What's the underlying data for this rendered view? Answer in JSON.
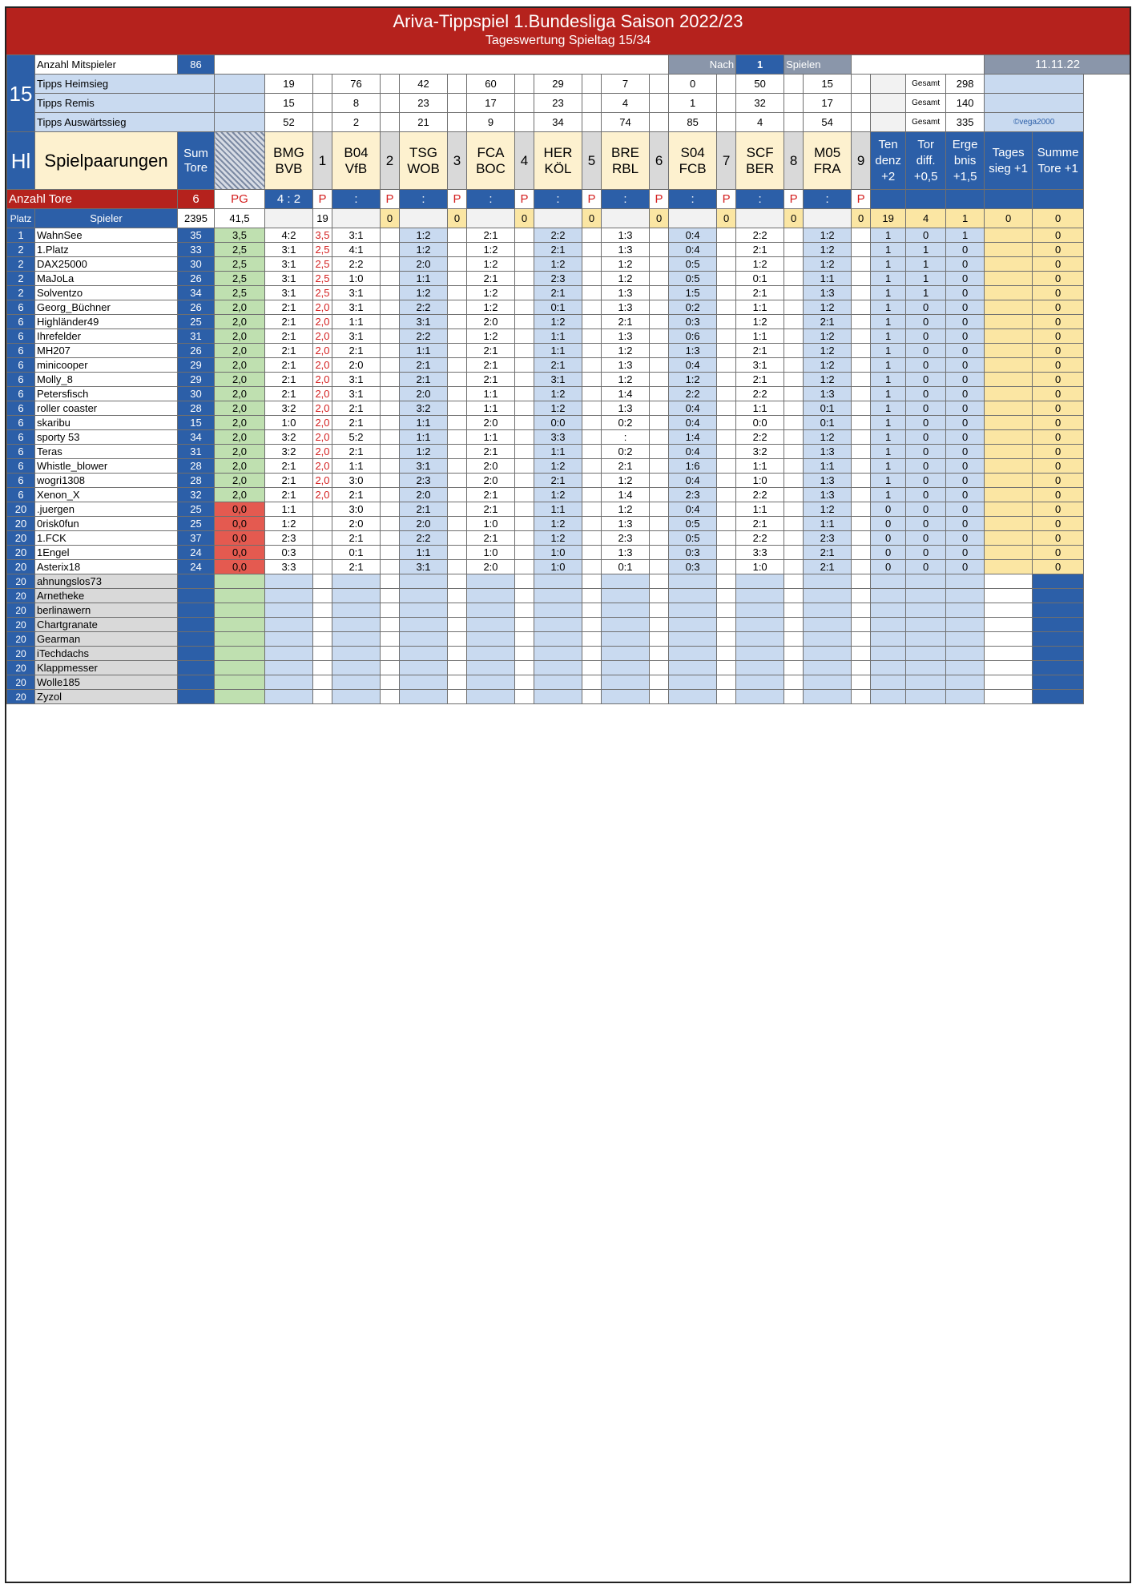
{
  "title": "Ariva-Tippspiel 1.Bundesliga Saison 2022/23",
  "subtitle": "Tageswertung Spieltag 15/34",
  "matchday": "15",
  "players_label": "Anzahl Mitspieler",
  "players_count": "86",
  "nach_label": "Nach",
  "nach_value": "1",
  "spielen_label": "Spielen",
  "date": "11.11.22",
  "copyright": "©vega2000",
  "gesamt_label": "Gesamt",
  "tipps": {
    "home_label": "Tipps Heimsieg",
    "home": [
      "19",
      "76",
      "42",
      "60",
      "29",
      "7",
      "0",
      "50",
      "15"
    ],
    "home_total": "298",
    "draw_label": "Tipps Remis",
    "draw": [
      "15",
      "8",
      "23",
      "17",
      "23",
      "4",
      "1",
      "32",
      "17"
    ],
    "draw_total": "140",
    "away_label": "Tipps Auswärtssieg",
    "away": [
      "52",
      "2",
      "21",
      "9",
      "34",
      "74",
      "85",
      "4",
      "54"
    ],
    "away_total": "335"
  },
  "header": {
    "hl": "Hl",
    "pairings": "Spielpaarungen",
    "sum_tore": "Sum Tore",
    "tendenz": "Ten denz +2",
    "tordiff": "Tor diff. +0,5",
    "ergebnis": "Erge bnis +1,5",
    "tagessieg": "Tages sieg +1",
    "summe_tore": "Summe Tore +1"
  },
  "matches": [
    {
      "home": "BMG",
      "away": "BVB",
      "n": "1",
      "result": "4 : 2"
    },
    {
      "home": "B04",
      "away": "VfB",
      "n": "2",
      "result": ":"
    },
    {
      "home": "TSG",
      "away": "WOB",
      "n": "3",
      "result": ":"
    },
    {
      "home": "FCA",
      "away": "BOC",
      "n": "4",
      "result": ":"
    },
    {
      "home": "HER",
      "away": "KÖL",
      "n": "5",
      "result": ":"
    },
    {
      "home": "BRE",
      "away": "RBL",
      "n": "6",
      "result": ":"
    },
    {
      "home": "S04",
      "away": "FCB",
      "n": "7",
      "result": ":"
    },
    {
      "home": "SCF",
      "away": "BER",
      "n": "8",
      "result": ":"
    },
    {
      "home": "M05",
      "away": "FRA",
      "n": "9",
      "result": ":"
    }
  ],
  "tore_label": "Anzahl Tore",
  "tore_value": "6",
  "pg_label": "PG",
  "p_label": "P",
  "col_platz": "Platz",
  "col_spieler": "Spieler",
  "sum_row": {
    "tore": "2395",
    "pg": "41,5",
    "p1": "19",
    "pts": [
      "0",
      "0",
      "0",
      "0",
      "0",
      "0",
      "0",
      "0"
    ],
    "tend": "19",
    "diff": "4",
    "erg": "1",
    "tag": "0",
    "sum": "0"
  },
  "players": [
    [
      "1",
      "WahnSee",
      "35",
      "3,5",
      "4:2",
      "3,5",
      "3:1",
      "1:2",
      "2:1",
      "2:2",
      "1:3",
      "0:4",
      "2:2",
      "1:2",
      "1",
      "0",
      "1",
      "",
      "0"
    ],
    [
      "2",
      "1.Platz",
      "33",
      "2,5",
      "3:1",
      "2,5",
      "4:1",
      "1:2",
      "1:2",
      "2:1",
      "1:3",
      "0:4",
      "2:1",
      "1:2",
      "1",
      "1",
      "0",
      "",
      "0"
    ],
    [
      "2",
      "DAX25000",
      "30",
      "2,5",
      "3:1",
      "2,5",
      "2:2",
      "2:0",
      "1:2",
      "1:2",
      "1:2",
      "0:5",
      "1:2",
      "1:2",
      "1",
      "1",
      "0",
      "",
      "0"
    ],
    [
      "2",
      "MaJoLa",
      "26",
      "2,5",
      "3:1",
      "2,5",
      "1:0",
      "1:1",
      "2:1",
      "2:3",
      "1:2",
      "0:5",
      "0:1",
      "1:1",
      "1",
      "1",
      "0",
      "",
      "0"
    ],
    [
      "2",
      "Solventzo",
      "34",
      "2,5",
      "3:1",
      "2,5",
      "3:1",
      "1:2",
      "1:2",
      "2:1",
      "1:3",
      "1:5",
      "2:1",
      "1:3",
      "1",
      "1",
      "0",
      "",
      "0"
    ],
    [
      "6",
      "Georg_Büchner",
      "26",
      "2,0",
      "2:1",
      "2,0",
      "3:1",
      "2:2",
      "1:2",
      "0:1",
      "1:3",
      "0:2",
      "1:1",
      "1:2",
      "1",
      "0",
      "0",
      "",
      "0"
    ],
    [
      "6",
      "Highländer49",
      "25",
      "2,0",
      "2:1",
      "2,0",
      "1:1",
      "3:1",
      "2:0",
      "1:2",
      "2:1",
      "0:3",
      "1:2",
      "2:1",
      "1",
      "0",
      "0",
      "",
      "0"
    ],
    [
      "6",
      "Ihrefelder",
      "31",
      "2,0",
      "2:1",
      "2,0",
      "3:1",
      "2:2",
      "1:2",
      "1:1",
      "1:3",
      "0:6",
      "1:1",
      "1:2",
      "1",
      "0",
      "0",
      "",
      "0"
    ],
    [
      "6",
      "MH207",
      "26",
      "2,0",
      "2:1",
      "2,0",
      "2:1",
      "1:1",
      "2:1",
      "1:1",
      "1:2",
      "1:3",
      "2:1",
      "1:2",
      "1",
      "0",
      "0",
      "",
      "0"
    ],
    [
      "6",
      "minicooper",
      "29",
      "2,0",
      "2:1",
      "2,0",
      "2:0",
      "2:1",
      "2:1",
      "2:1",
      "1:3",
      "0:4",
      "3:1",
      "1:2",
      "1",
      "0",
      "0",
      "",
      "0"
    ],
    [
      "6",
      "Molly_8",
      "29",
      "2,0",
      "2:1",
      "2,0",
      "3:1",
      "2:1",
      "2:1",
      "3:1",
      "1:2",
      "1:2",
      "2:1",
      "1:2",
      "1",
      "0",
      "0",
      "",
      "0"
    ],
    [
      "6",
      "Petersfisch",
      "30",
      "2,0",
      "2:1",
      "2,0",
      "3:1",
      "2:0",
      "1:1",
      "1:2",
      "1:4",
      "2:2",
      "2:2",
      "1:3",
      "1",
      "0",
      "0",
      "",
      "0"
    ],
    [
      "6",
      "roller coaster",
      "28",
      "2,0",
      "3:2",
      "2,0",
      "2:1",
      "3:2",
      "1:1",
      "1:2",
      "1:3",
      "0:4",
      "1:1",
      "0:1",
      "1",
      "0",
      "0",
      "",
      "0"
    ],
    [
      "6",
      "skaribu",
      "15",
      "2,0",
      "1:0",
      "2,0",
      "2:1",
      "1:1",
      "2:0",
      "0:0",
      "0:2",
      "0:4",
      "0:0",
      "0:1",
      "1",
      "0",
      "0",
      "",
      "0"
    ],
    [
      "6",
      "sporty 53",
      "34",
      "2,0",
      "3:2",
      "2,0",
      "5:2",
      "1:1",
      "1:1",
      "3:3",
      ":",
      "1:4",
      "2:2",
      "1:2",
      "1",
      "0",
      "0",
      "",
      "0"
    ],
    [
      "6",
      "Teras",
      "31",
      "2,0",
      "3:2",
      "2,0",
      "2:1",
      "1:2",
      "2:1",
      "1:1",
      "0:2",
      "0:4",
      "3:2",
      "1:3",
      "1",
      "0",
      "0",
      "",
      "0"
    ],
    [
      "6",
      "Whistle_blower",
      "28",
      "2,0",
      "2:1",
      "2,0",
      "1:1",
      "3:1",
      "2:0",
      "1:2",
      "2:1",
      "1:6",
      "1:1",
      "1:1",
      "1",
      "0",
      "0",
      "",
      "0"
    ],
    [
      "6",
      "wogri1308",
      "28",
      "2,0",
      "2:1",
      "2,0",
      "3:0",
      "2:3",
      "2:0",
      "2:1",
      "1:2",
      "0:4",
      "1:0",
      "1:3",
      "1",
      "0",
      "0",
      "",
      "0"
    ],
    [
      "6",
      "Xenon_X",
      "32",
      "2,0",
      "2:1",
      "2,0",
      "2:1",
      "2:0",
      "2:1",
      "1:2",
      "1:4",
      "2:3",
      "2:2",
      "1:3",
      "1",
      "0",
      "0",
      "",
      "0"
    ],
    [
      "20",
      ".juergen",
      "25",
      "0,0",
      "1:1",
      "",
      "3:0",
      "2:1",
      "2:1",
      "1:1",
      "1:2",
      "0:4",
      "1:1",
      "1:2",
      "0",
      "0",
      "0",
      "",
      "0"
    ],
    [
      "20",
      "0risk0fun",
      "25",
      "0,0",
      "1:2",
      "",
      "2:0",
      "2:0",
      "1:0",
      "1:2",
      "1:3",
      "0:5",
      "2:1",
      "1:1",
      "0",
      "0",
      "0",
      "",
      "0"
    ],
    [
      "20",
      "1.FCK",
      "37",
      "0,0",
      "2:3",
      "",
      "2:1",
      "2:2",
      "2:1",
      "1:2",
      "2:3",
      "0:5",
      "2:2",
      "2:3",
      "0",
      "0",
      "0",
      "",
      "0"
    ],
    [
      "20",
      "1Engel",
      "24",
      "0,0",
      "0:3",
      "",
      "0:1",
      "1:1",
      "1:0",
      "1:0",
      "1:3",
      "0:3",
      "3:3",
      "2:1",
      "0",
      "0",
      "0",
      "",
      "0"
    ],
    [
      "20",
      "Asterix18",
      "24",
      "0,0",
      "3:3",
      "",
      "2:1",
      "3:1",
      "2:0",
      "1:0",
      "0:1",
      "0:3",
      "1:0",
      "2:1",
      "0",
      "0",
      "0",
      "",
      "0"
    ]
  ],
  "players_more_note": "",
  "empty_players": [
    "ahnungslos73",
    "Arnetheke",
    "berlinawern",
    "Chartgranate",
    "Gearman",
    "iTechdachs",
    "Klappmesser",
    "Wolle185",
    "Zyzol"
  ]
}
